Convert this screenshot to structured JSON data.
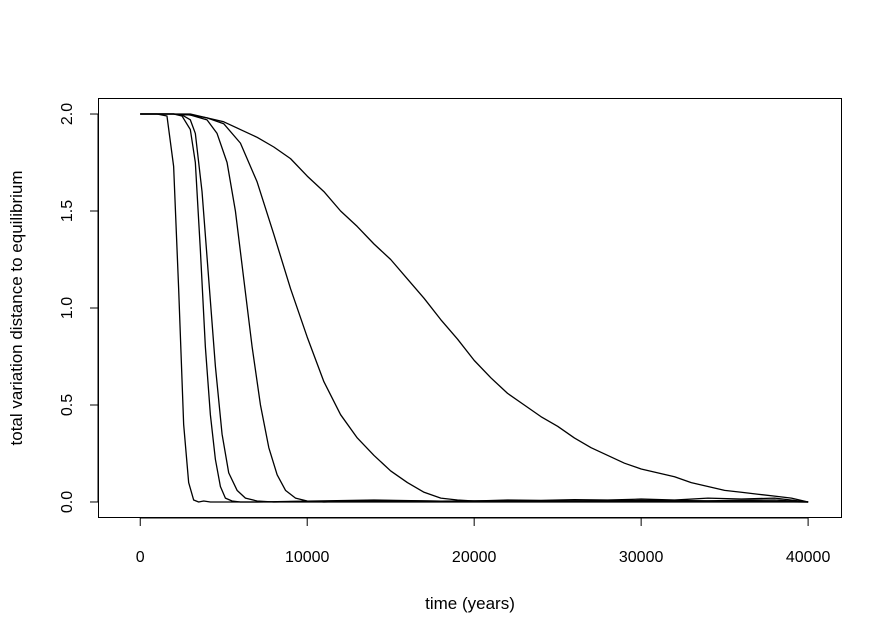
{
  "chart_data": {
    "type": "line",
    "xlabel": "time (years)",
    "ylabel": "total variation distance to equilibrium",
    "xlim": [
      -2500,
      42000
    ],
    "ylim": [
      -0.08,
      2.08
    ],
    "xticks": [
      0,
      10000,
      20000,
      30000,
      40000
    ],
    "xtick_labels": [
      "0",
      "10000",
      "20000",
      "30000",
      "40000"
    ],
    "yticks": [
      0.0,
      0.5,
      1.0,
      1.5,
      2.0
    ],
    "ytick_labels": [
      "0.0",
      "0.5",
      "1.0",
      "1.5",
      "2.0"
    ],
    "grid": false,
    "series": [
      {
        "x": [
          0,
          1000,
          1600,
          2000,
          2300,
          2600,
          2900,
          3200,
          3500,
          3800,
          4200,
          5000,
          6000,
          8000,
          10000,
          15000,
          20000,
          25000,
          30000,
          35000,
          40000
        ],
        "values": [
          2.0,
          2.0,
          1.99,
          1.73,
          1.1,
          0.4,
          0.1,
          0.01,
          0.0,
          0.005,
          0.0,
          0.0,
          0.0,
          0.0,
          0.0,
          0.0,
          0.0,
          0.0,
          0.0,
          0.0,
          0.0
        ]
      },
      {
        "x": [
          0,
          2000,
          2500,
          3000,
          3300,
          3600,
          3900,
          4200,
          4500,
          4800,
          5100,
          5500,
          6000,
          7000,
          9000,
          12000,
          16000,
          20000,
          25000,
          30000,
          35000,
          40000
        ],
        "values": [
          2.0,
          2.0,
          1.99,
          1.92,
          1.75,
          1.3,
          0.8,
          0.45,
          0.22,
          0.08,
          0.02,
          0.005,
          0.0,
          0.0,
          0.003,
          0.005,
          0.003,
          0.005,
          0.002,
          0.004,
          0.003,
          0.0
        ]
      },
      {
        "x": [
          0,
          2000,
          2500,
          3000,
          3300,
          3700,
          4100,
          4500,
          4900,
          5300,
          5800,
          6300,
          7000,
          8000,
          10000,
          14000,
          18000,
          24000,
          30000,
          36000,
          40000
        ],
        "values": [
          2.0,
          2.0,
          1.995,
          1.97,
          1.9,
          1.6,
          1.15,
          0.7,
          0.35,
          0.15,
          0.06,
          0.02,
          0.005,
          0.0,
          0.004,
          0.01,
          0.004,
          0.006,
          0.005,
          0.004,
          0.0
        ]
      },
      {
        "x": [
          0,
          2000,
          3000,
          4000,
          4600,
          5200,
          5700,
          6200,
          6700,
          7200,
          7700,
          8200,
          8700,
          9300,
          10000,
          11000,
          14000,
          18000,
          22000,
          26000,
          30000,
          34000,
          38000,
          40000
        ],
        "values": [
          2.0,
          2.0,
          1.995,
          1.97,
          1.9,
          1.75,
          1.5,
          1.15,
          0.8,
          0.5,
          0.28,
          0.14,
          0.06,
          0.02,
          0.005,
          0.0,
          0.008,
          0.004,
          0.006,
          0.005,
          0.008,
          0.006,
          0.01,
          0.0
        ]
      },
      {
        "x": [
          0,
          2000,
          3000,
          4000,
          5000,
          6000,
          7000,
          8000,
          9000,
          10000,
          11000,
          12000,
          13000,
          14000,
          15000,
          16000,
          17000,
          18000,
          19000,
          20000,
          22000,
          24000,
          26000,
          28000,
          30000,
          32000,
          34000,
          36000,
          38000,
          40000
        ],
        "values": [
          2.0,
          2.0,
          1.995,
          1.98,
          1.95,
          1.85,
          1.65,
          1.38,
          1.1,
          0.85,
          0.62,
          0.45,
          0.33,
          0.24,
          0.16,
          0.1,
          0.05,
          0.02,
          0.01,
          0.005,
          0.01,
          0.008,
          0.012,
          0.01,
          0.015,
          0.01,
          0.02,
          0.015,
          0.02,
          0.0
        ]
      },
      {
        "x": [
          0,
          3000,
          4000,
          5000,
          6000,
          7000,
          8000,
          9000,
          10000,
          11000,
          12000,
          13000,
          14000,
          15000,
          16000,
          17000,
          18000,
          19000,
          20000,
          21000,
          22000,
          23000,
          24000,
          25000,
          26000,
          27000,
          28000,
          29000,
          30000,
          31000,
          32000,
          33000,
          34000,
          35000,
          36000,
          37000,
          38000,
          39000,
          40000
        ],
        "values": [
          2.0,
          2.0,
          1.98,
          1.96,
          1.92,
          1.88,
          1.83,
          1.77,
          1.68,
          1.6,
          1.5,
          1.42,
          1.33,
          1.25,
          1.15,
          1.05,
          0.94,
          0.84,
          0.73,
          0.64,
          0.56,
          0.5,
          0.44,
          0.39,
          0.33,
          0.28,
          0.24,
          0.2,
          0.17,
          0.15,
          0.13,
          0.1,
          0.08,
          0.06,
          0.05,
          0.04,
          0.03,
          0.02,
          0.0
        ]
      }
    ]
  }
}
